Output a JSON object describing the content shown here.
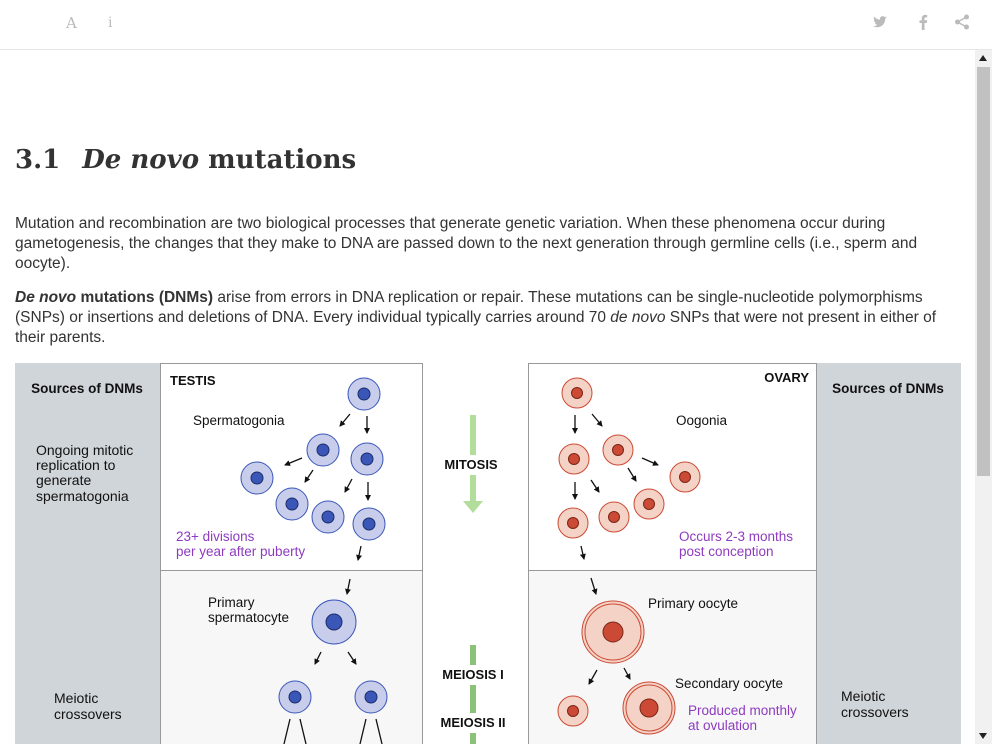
{
  "toolbar": {
    "font_icon_glyph": "A",
    "info_icon_glyph": "i",
    "twitter_icon": "twitter-icon",
    "facebook_icon": "facebook-icon",
    "share_icon": "share-icon"
  },
  "section": {
    "number": "3.1",
    "title_italic": "De novo",
    "title_rest": "mutations"
  },
  "paragraphs": {
    "p1": "Mutation and recombination are two biological processes that generate genetic variation. When these phenomena occur during gametogenesis, the changes that they make to DNA are passed down to the next generation through germline cells (i.e., sperm and oocyte).",
    "p2_bold_italic": "De novo",
    "p2_bold": " mutations (DNMs)",
    "p2_a": " arise from errors in DNA replication or repair. These mutations can be single-nucleotide polymorphisms (SNPs) or insertions and deletions of DNA. Every individual typically carries around 70 ",
    "p2_italic": "de novo",
    "p2_b": " SNPs that were not present in either of their parents."
  },
  "figure": {
    "left_header": "Sources of DNMs",
    "right_header": "Sources of DNMs",
    "left_mitotic": [
      "Ongoing mitotic",
      "replication to",
      "generate",
      "spermatogonia"
    ],
    "left_meiotic": [
      "Meiotic",
      "crossovers"
    ],
    "right_meiotic": [
      "Meiotic",
      "crossovers"
    ],
    "testis_label": "TESTIS",
    "ovary_label": "OVARY",
    "spermatogonia_label": "Spermatogonia",
    "oogonia_label": "Oogonia",
    "testis_note": [
      "23+ divisions",
      "per year after puberty"
    ],
    "ovary_note": [
      "Occurs 2-3 months",
      "post conception"
    ],
    "primary_spermatocyte": [
      "Primary",
      "spermatocyte"
    ],
    "primary_oocyte": "Primary oocyte",
    "secondary_oocyte": "Secondary oocyte",
    "ovulation_note": [
      "Produced monthly",
      "at ovulation"
    ],
    "mitosis_label": "MITOSIS",
    "meiosis1_label": "MEIOSIS I",
    "meiosis2_label": "MEIOSIS II",
    "colors": {
      "side_panel": "#d0d5d9",
      "purple": "#8e3bbf",
      "blue_cell_fill": "#c9cdec",
      "blue_nucleus": "#3a57b8",
      "red_cell_fill": "#f4d2c5",
      "red_nucleus": "#cc4a35",
      "mitosis_arrow": "#b2dd9b",
      "meiosis_bar": "#8cc17a"
    }
  }
}
